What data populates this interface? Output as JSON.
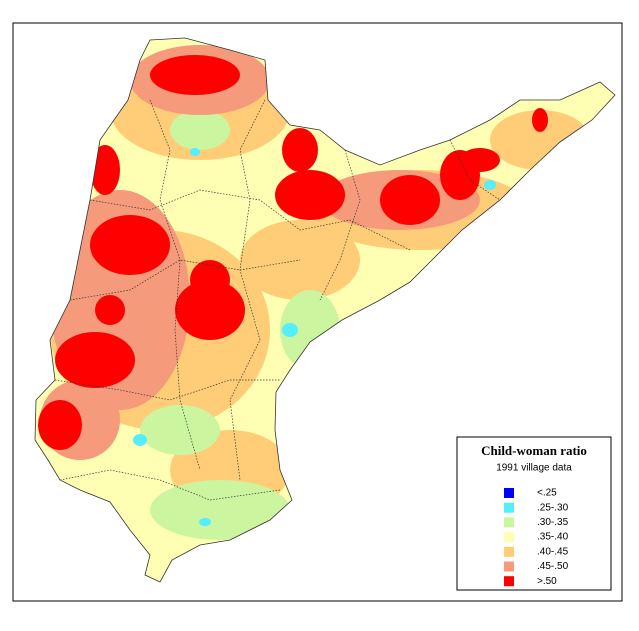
{
  "legend": {
    "title": "Child-woman ratio",
    "subtitle": "1991 village data",
    "items": [
      {
        "label": "<.25",
        "color": "#0000ff"
      },
      {
        "label": ".25-.30",
        "color": "#55eeff"
      },
      {
        "label": ".30-.35",
        "color": "#ccf5a0"
      },
      {
        "label": ".35-.40",
        "color": "#ffffb4"
      },
      {
        "label": ".40-.45",
        "color": "#ffcc77"
      },
      {
        "label": ".45-.50",
        "color": "#f59a7a"
      },
      {
        "label": ">.50",
        "color": "#ff0000"
      }
    ]
  }
}
